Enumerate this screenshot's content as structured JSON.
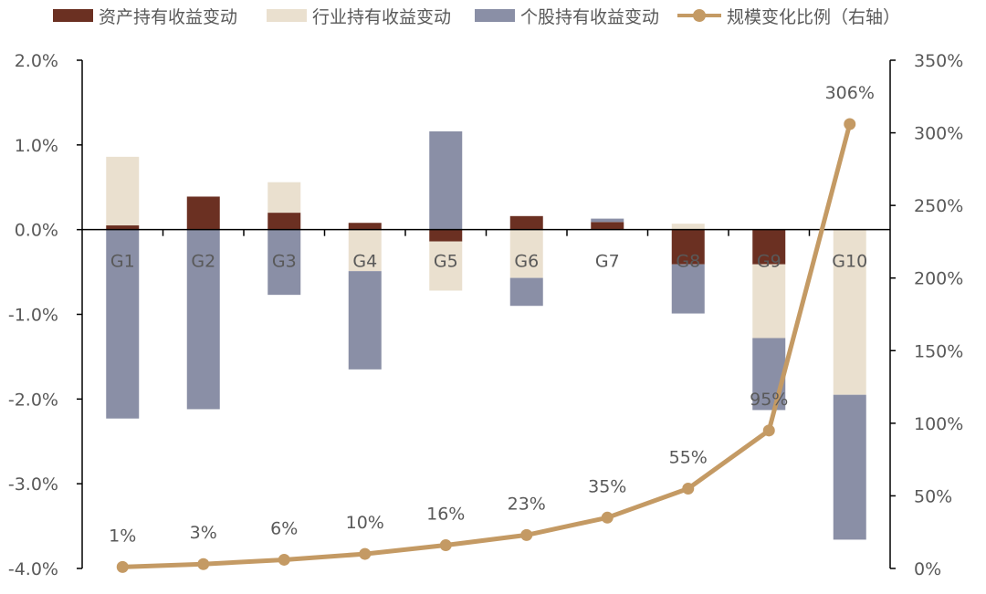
{
  "legend": {
    "items": [
      {
        "label": "资产持有收益变动",
        "color": "#6B3022",
        "type": "bar"
      },
      {
        "label": "行业持有收益变动",
        "color": "#EAE0CF",
        "type": "bar"
      },
      {
        "label": "个股持有收益变动",
        "color": "#8A8FA6",
        "type": "bar"
      },
      {
        "label": "规模变化比例（右轴）",
        "color": "#C49A64",
        "type": "line"
      }
    ]
  },
  "colors": {
    "asset": "#6B3022",
    "industry": "#EAE0CF",
    "stock": "#8A8FA6",
    "line": "#C49A64",
    "axis": "#000000",
    "text": "#595959"
  },
  "chart_data": {
    "type": "bar",
    "subtype": "stacked bar + line (dual axis)",
    "title": "",
    "categories": [
      "G1",
      "G2",
      "G3",
      "G4",
      "G5",
      "G6",
      "G7",
      "G8",
      "G9",
      "G10"
    ],
    "series": [
      {
        "name": "资产持有收益变动",
        "axis": "left",
        "type": "bar",
        "values": [
          0.05,
          0.39,
          0.2,
          0.08,
          -0.14,
          0.16,
          0.09,
          -0.41,
          -0.41,
          0.0
        ]
      },
      {
        "name": "行业持有收益变动",
        "axis": "left",
        "type": "bar",
        "values": [
          0.81,
          0.0,
          0.36,
          -0.49,
          -0.58,
          -0.57,
          0.0,
          0.07,
          -0.87,
          -1.95
        ]
      },
      {
        "name": "个股持有收益变动",
        "axis": "left",
        "type": "bar",
        "values": [
          -2.23,
          -2.12,
          -0.77,
          -1.16,
          1.16,
          -0.33,
          0.04,
          -0.58,
          -0.85,
          -1.71
        ]
      },
      {
        "name": "规模变化比例（右轴）",
        "axis": "right",
        "type": "line",
        "values": [
          1,
          3,
          6,
          10,
          16,
          23,
          35,
          55,
          95,
          306
        ],
        "labels": [
          "1%",
          "3%",
          "6%",
          "10%",
          "16%",
          "23%",
          "35%",
          "55%",
          "95%",
          "306%"
        ]
      }
    ],
    "y_left": {
      "label": "",
      "min": -4.0,
      "max": 2.0,
      "step": 1.0,
      "ticks": [
        "2.0%",
        "1.0%",
        "0.0%",
        "-1.0%",
        "-2.0%",
        "-3.0%",
        "-4.0%"
      ]
    },
    "y_right": {
      "label": "",
      "min": 0,
      "max": 350,
      "step": 50,
      "ticks": [
        "350%",
        "300%",
        "250%",
        "200%",
        "150%",
        "100%",
        "50%",
        "0%"
      ]
    },
    "xlabel": "",
    "grid": false,
    "legend_position": "top"
  }
}
